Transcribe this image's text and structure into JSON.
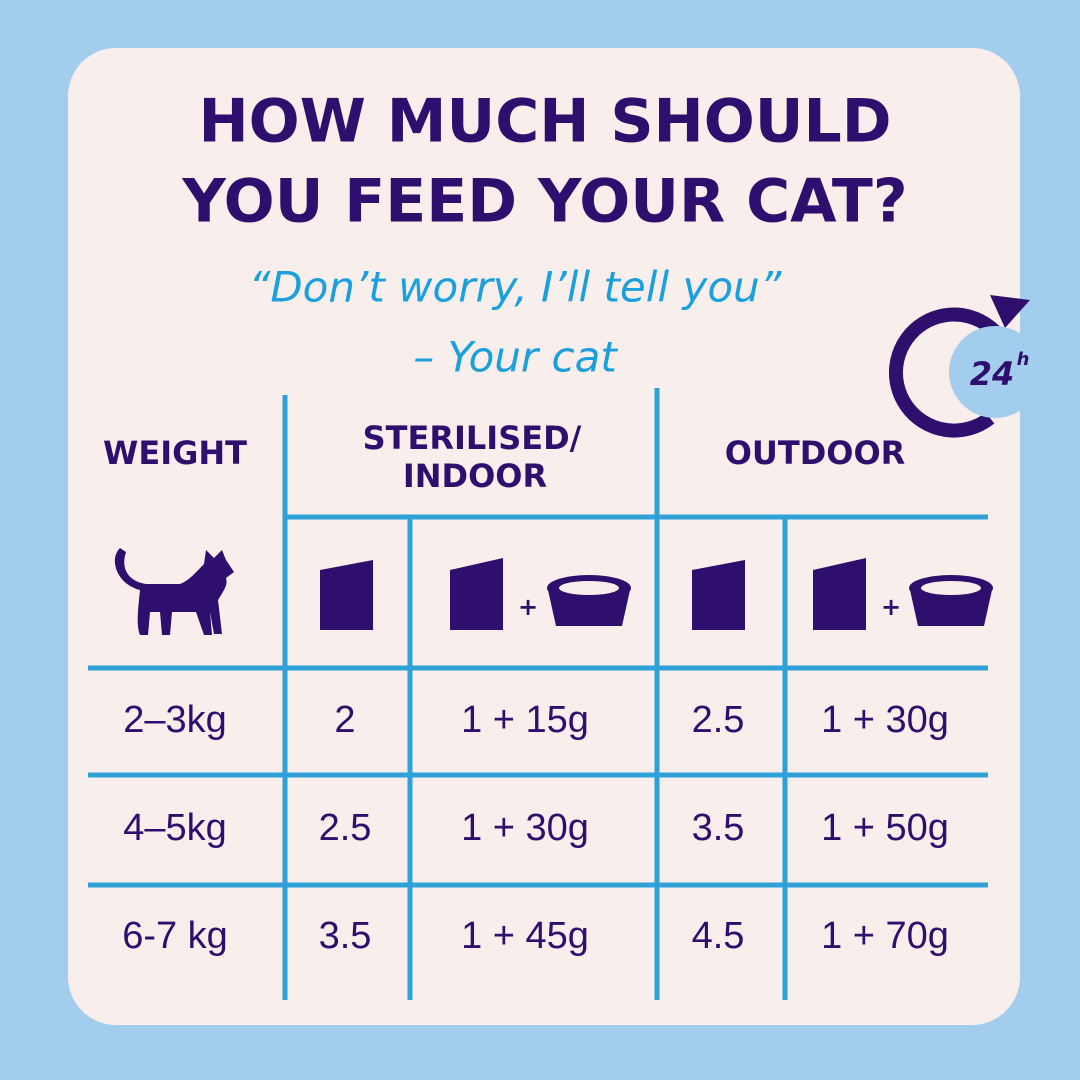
{
  "title": [
    "HOW MUCH SHOULD",
    "YOU FEED YOUR CAT?"
  ],
  "quote": "“Don’t worry, I’ll tell you”",
  "attribution": "– Your cat",
  "badge": {
    "number": "24",
    "unit": "h"
  },
  "table": {
    "headers": {
      "weight": "WEIGHT",
      "sterilised": [
        "STERILISED/",
        "INDOOR"
      ],
      "outdoor": "OUTDOOR"
    },
    "plus": "+",
    "rows": [
      [
        "2–3kg",
        "2",
        "1 + 15g",
        "2.5",
        "1 + 30g"
      ],
      [
        "4–5kg",
        "2.5",
        "1 + 30g",
        "3.5",
        "1 + 50g"
      ],
      [
        "6-7 kg",
        "3.5",
        "1 + 45g",
        "4.5",
        "1 + 70g"
      ]
    ]
  }
}
